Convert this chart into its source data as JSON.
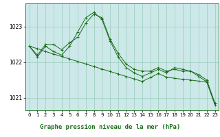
{
  "title": "Graphe pression niveau de la mer (hPa)",
  "bg_color": "#cce8e8",
  "plot_bg_color": "#cce8e8",
  "bottom_bg_color": "#ffffff",
  "grid_color": "#99ccbb",
  "line_color": "#1a6b1a",
  "marker_color": "#1a6b1a",
  "xlim": [
    -0.5,
    23.5
  ],
  "ylim": [
    1020.65,
    1023.65
  ],
  "yticks": [
    1021,
    1022,
    1023
  ],
  "xticks": [
    0,
    1,
    2,
    3,
    4,
    5,
    6,
    7,
    8,
    9,
    10,
    11,
    12,
    13,
    14,
    15,
    16,
    17,
    18,
    19,
    20,
    21,
    22,
    23
  ],
  "series1": {
    "x": [
      0,
      1,
      2,
      3,
      4,
      5,
      6,
      7,
      8,
      9,
      10,
      11,
      12,
      13,
      14,
      15,
      16,
      17,
      18,
      19,
      20,
      21,
      22,
      23
    ],
    "y": [
      1022.45,
      1022.2,
      1022.5,
      1022.5,
      1022.35,
      1022.55,
      1022.7,
      1023.1,
      1023.35,
      1023.25,
      1022.65,
      1022.25,
      1021.95,
      1021.8,
      1021.75,
      1021.75,
      1021.85,
      1021.75,
      1021.8,
      1021.75,
      1021.75,
      1021.65,
      1021.5,
      1020.85
    ]
  },
  "series2": {
    "x": [
      0,
      1,
      2,
      3,
      4,
      5,
      6,
      7,
      8,
      9,
      10,
      11,
      12,
      13,
      14,
      15,
      16,
      17,
      18,
      19,
      20,
      21,
      22,
      23
    ],
    "y": [
      1022.45,
      1022.15,
      1022.45,
      1022.3,
      1022.2,
      1022.45,
      1022.85,
      1023.25,
      1023.4,
      1023.2,
      1022.6,
      1022.15,
      1021.85,
      1021.7,
      1021.6,
      1021.7,
      1021.8,
      1021.7,
      1021.85,
      1021.8,
      1021.75,
      1021.6,
      1021.45,
      1020.8
    ]
  },
  "series3": {
    "x": [
      0,
      1,
      2,
      3,
      4,
      5,
      6,
      7,
      8,
      9,
      10,
      11,
      12,
      13,
      14,
      15,
      16,
      17,
      18,
      19,
      20,
      21,
      22,
      23
    ],
    "y": [
      1022.45,
      1022.38,
      1022.3,
      1022.23,
      1022.16,
      1022.09,
      1022.02,
      1021.95,
      1021.88,
      1021.81,
      1021.74,
      1021.67,
      1021.6,
      1021.53,
      1021.46,
      1021.57,
      1021.68,
      1021.58,
      1021.55,
      1021.52,
      1021.5,
      1021.47,
      1021.44,
      1020.85
    ]
  }
}
